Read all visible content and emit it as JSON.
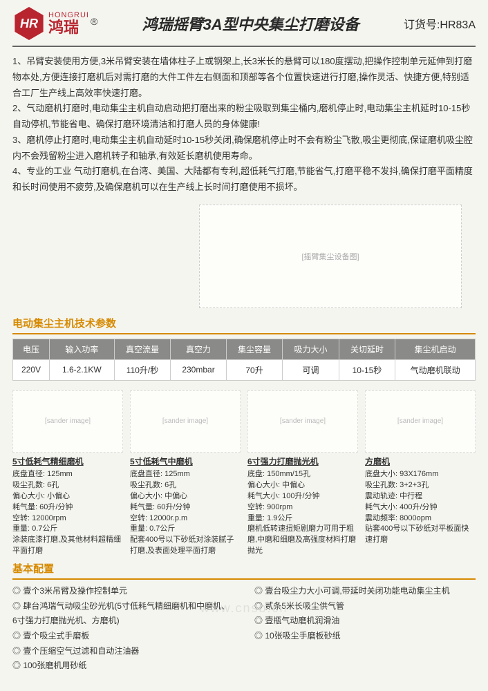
{
  "header": {
    "logo_initials": "HR",
    "brand_en": "HONGRUI",
    "brand_cn": "鸿瑞",
    "reg_mark": "®",
    "title": "鸿瑞摇臂3A型中央集尘打磨设备",
    "order_label": "订货号:HR83A"
  },
  "description": {
    "p1": "1、吊臂安装使用方便,3米吊臂安装在墙体柱子上或钢架上,长3米长的悬臂可以180度摆动,把操作控制单元延伸到打磨物本处,方便连接打磨机后对需打磨的大件工件左右侧面和顶部等各个位置快速进行打磨,操作灵活、快捷方便,特别适合工厂生产线上高效率快速打磨。",
    "p2": "2、气动磨机打磨时,电动集尘主机自动启动把打磨出来的粉尘吸取到集尘桶内,磨机停止时,电动集尘主机延时10-15秒自动停机,节能省电、确保打磨环境清洁和打磨人员的身体健康!",
    "p3": "3、磨机停止打磨时,电动集尘主机自动延时10-15秒关闭,确保磨机停止时不会有粉尘飞散,吸尘更彻底,保证磨机吸尘腔内不会残留粉尘进入磨机转子和轴承,有效延长磨机使用寿命。",
    "p4": "4、专业的工业 气动打磨机,在台湾、美国、大陆都有专利,超低耗气打磨,节能省气,打磨平稳不发抖,确保打磨平面精度和长时间使用不疲劳,及确保磨机可以在生产线上长时间打磨使用不损坏。"
  },
  "spec_section_title": "电动集尘主机技术参数",
  "spec_table": {
    "headers": [
      "电压",
      "输入功率",
      "真空流量",
      "真空力",
      "集尘容量",
      "吸力大小",
      "关切延时",
      "集尘机启动"
    ],
    "row": [
      "220V",
      "1.6-2.1KW",
      "110升/秒",
      "230mbar",
      "70升",
      "可调",
      "10-15秒",
      "气动磨机联动"
    ]
  },
  "sanders": [
    {
      "name": "5寸低耗气精细磨机",
      "img_label": "[sander image]",
      "specs": [
        "底盘直径: 125mm",
        "吸尘孔数: 6孔",
        "偏心大小: 小偏心",
        "耗气量: 60升/分钟",
        "空转: 12000rpm",
        "重量: 0.7公斤",
        "涂装底漆打磨,及其他材料超精细平面打磨"
      ]
    },
    {
      "name": "5寸低耗气中磨机",
      "img_label": "[sander image]",
      "specs": [
        "底盘直径: 125mm",
        "吸尘孔数: 6孔",
        "偏心大小: 中偏心",
        "耗气量: 60升/分钟",
        "空转: 12000r.p.m",
        "重量: 0.7公斤",
        "配套400号以下砂纸对涂装腻子打磨,及表面处理平面打磨"
      ]
    },
    {
      "name": "6寸强力打磨抛光机",
      "img_label": "[sander image]",
      "specs": [
        "底盘: 150mm/15孔",
        "偏心大小: 中偏心",
        "耗气大小: 100升/分钟",
        "空转: 900rpm",
        "重量: 1.9公斤",
        "磨机低转速扭矩剧磨力可用于粗磨,中磨和细磨及高强度材料打磨抛光"
      ]
    },
    {
      "name": "方磨机",
      "img_label": "[sander image]",
      "specs": [
        "底盘大小: 93X176mm",
        "吸尘孔数: 3+2+3孔",
        "震动轨迹: 中行程",
        "耗气大小: 400升/分钟",
        "震动频率: 8000opm",
        "贴套400号以下砂纸对平板面快速打磨"
      ]
    }
  ],
  "config_title": "基本配置",
  "config_left": [
    "◎ 壹个3米吊臂及操作控制单元",
    "◎ 肆台鸿瑞气动吸尘砂光机(5寸低耗气精细磨机和中磨机、6寸强力打磨抛光机、方磨机)",
    "◎ 壹个吸尘式手磨板",
    "◎ 壹个压缩空气过滤和自动注油器",
    "◎ 100张磨机用砂纸"
  ],
  "config_right": [
    "◎ 壹台吸尘力大小可调,带延时关闭功能电动集尘主机",
    "",
    "◎ 贰条5米长吸尘供气管",
    "◎ 壹瓶气动磨机润滑油",
    "◎ 10张吸尘手磨板砂纸"
  ],
  "watermark": "www.cnsb.cn",
  "colors": {
    "brand_red": "#b8252f",
    "section_orange": "#d68a00",
    "table_header_bg": "#8a8a88",
    "background": "#f5f5f0"
  }
}
